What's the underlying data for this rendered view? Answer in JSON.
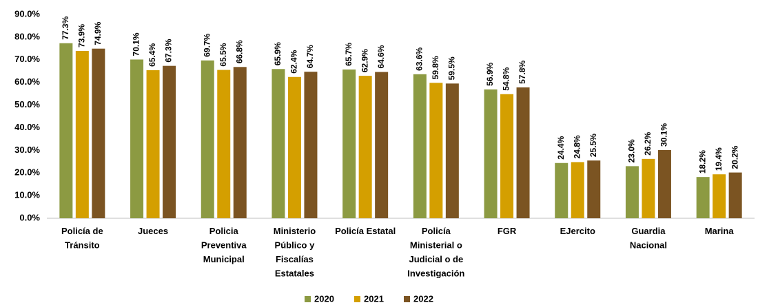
{
  "chart_data": {
    "type": "bar",
    "categories": [
      "Policía de\nTránsito",
      "Jueces",
      "Policia\nPreventiva\nMunicipal",
      "Ministerio\nPúblico y\nFiscalías\nEstatales",
      "Policía Estatal",
      "Policía\nMinisterial o\nJudicial o de\nInvestigación",
      "FGR",
      "EJercito",
      "Guardia\nNacional",
      "Marina"
    ],
    "series": [
      {
        "name": "2020",
        "color": "#8c9a42",
        "values": [
          77.3,
          70.1,
          69.7,
          65.9,
          65.7,
          63.6,
          56.9,
          24.4,
          23.0,
          18.2
        ],
        "value_labels": [
          "77.3%",
          "70.1%",
          "69.7%",
          "65.9%",
          "65.7%",
          "63.6%",
          "56.9%",
          "24.4%",
          "23.0%",
          "18.2%"
        ]
      },
      {
        "name": "2021",
        "color": "#d49f00",
        "values": [
          73.9,
          65.4,
          65.5,
          62.4,
          62.9,
          59.8,
          54.8,
          24.8,
          26.2,
          19.4
        ],
        "value_labels": [
          "73.9%",
          "65.4%",
          "65.5%",
          "62.4%",
          "62.9%",
          "59.8%",
          "54.8%",
          "24.8%",
          "26.2%",
          "19.4%"
        ]
      },
      {
        "name": "2022",
        "color": "#7b5422",
        "values": [
          74.9,
          67.3,
          66.8,
          64.7,
          64.6,
          59.5,
          57.8,
          25.5,
          30.1,
          20.2
        ],
        "value_labels": [
          "74.9%",
          "67.3%",
          "66.8%",
          "64.7%",
          "64.6%",
          "59.5%",
          "57.8%",
          "25.5%",
          "30.1%",
          "20.2%"
        ]
      }
    ],
    "ylim": [
      0,
      90
    ],
    "yticks": [
      {
        "value": 0,
        "label": "0.0%"
      },
      {
        "value": 10,
        "label": "10.0%"
      },
      {
        "value": 20,
        "label": "20.0%"
      },
      {
        "value": 30,
        "label": "30.0%"
      },
      {
        "value": 40,
        "label": "40.0%"
      },
      {
        "value": 50,
        "label": "50.0%"
      },
      {
        "value": 60,
        "label": "60.0%"
      },
      {
        "value": 70,
        "label": "70.0%"
      },
      {
        "value": 80,
        "label": "80.0%"
      },
      {
        "value": 90,
        "label": "90.0%"
      }
    ],
    "grid": false,
    "legend": "bottom"
  }
}
